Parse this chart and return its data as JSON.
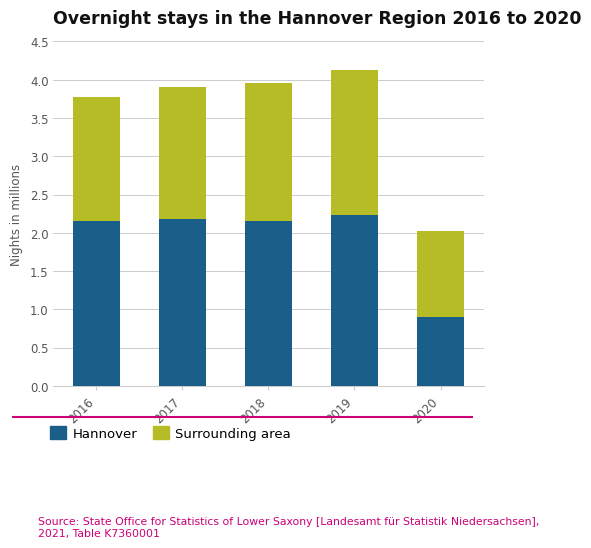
{
  "title": "Overnight stays in the Hannover Region 2016 to 2020",
  "years": [
    "2016",
    "2017",
    "2018",
    "2019",
    "2020"
  ],
  "hannover": [
    2.15,
    2.18,
    2.16,
    2.23,
    0.9
  ],
  "surrounding": [
    1.63,
    1.72,
    1.8,
    1.9,
    1.12
  ],
  "ylabel": "Nights in millions",
  "ylim": [
    0,
    4.5
  ],
  "yticks": [
    0,
    0.5,
    1.0,
    1.5,
    2.0,
    2.5,
    3.0,
    3.5,
    4.0,
    4.5
  ],
  "color_hannover": "#1a5f8a",
  "color_surrounding": "#b5bc25",
  "legend_label_1": "Hannover",
  "legend_label_2": "Surrounding area",
  "source_text": "Source: State Office for Statistics of Lower Saxony [Landesamt für Statistik Niedersachsen],\n2021, Table K7360001",
  "source_color": "#cc0077",
  "separator_color": "#cc0077",
  "background_color": "#ffffff",
  "title_fontsize": 12.5,
  "axis_fontsize": 8.5,
  "tick_fontsize": 8.5,
  "legend_fontsize": 9.5,
  "source_fontsize": 7.8
}
